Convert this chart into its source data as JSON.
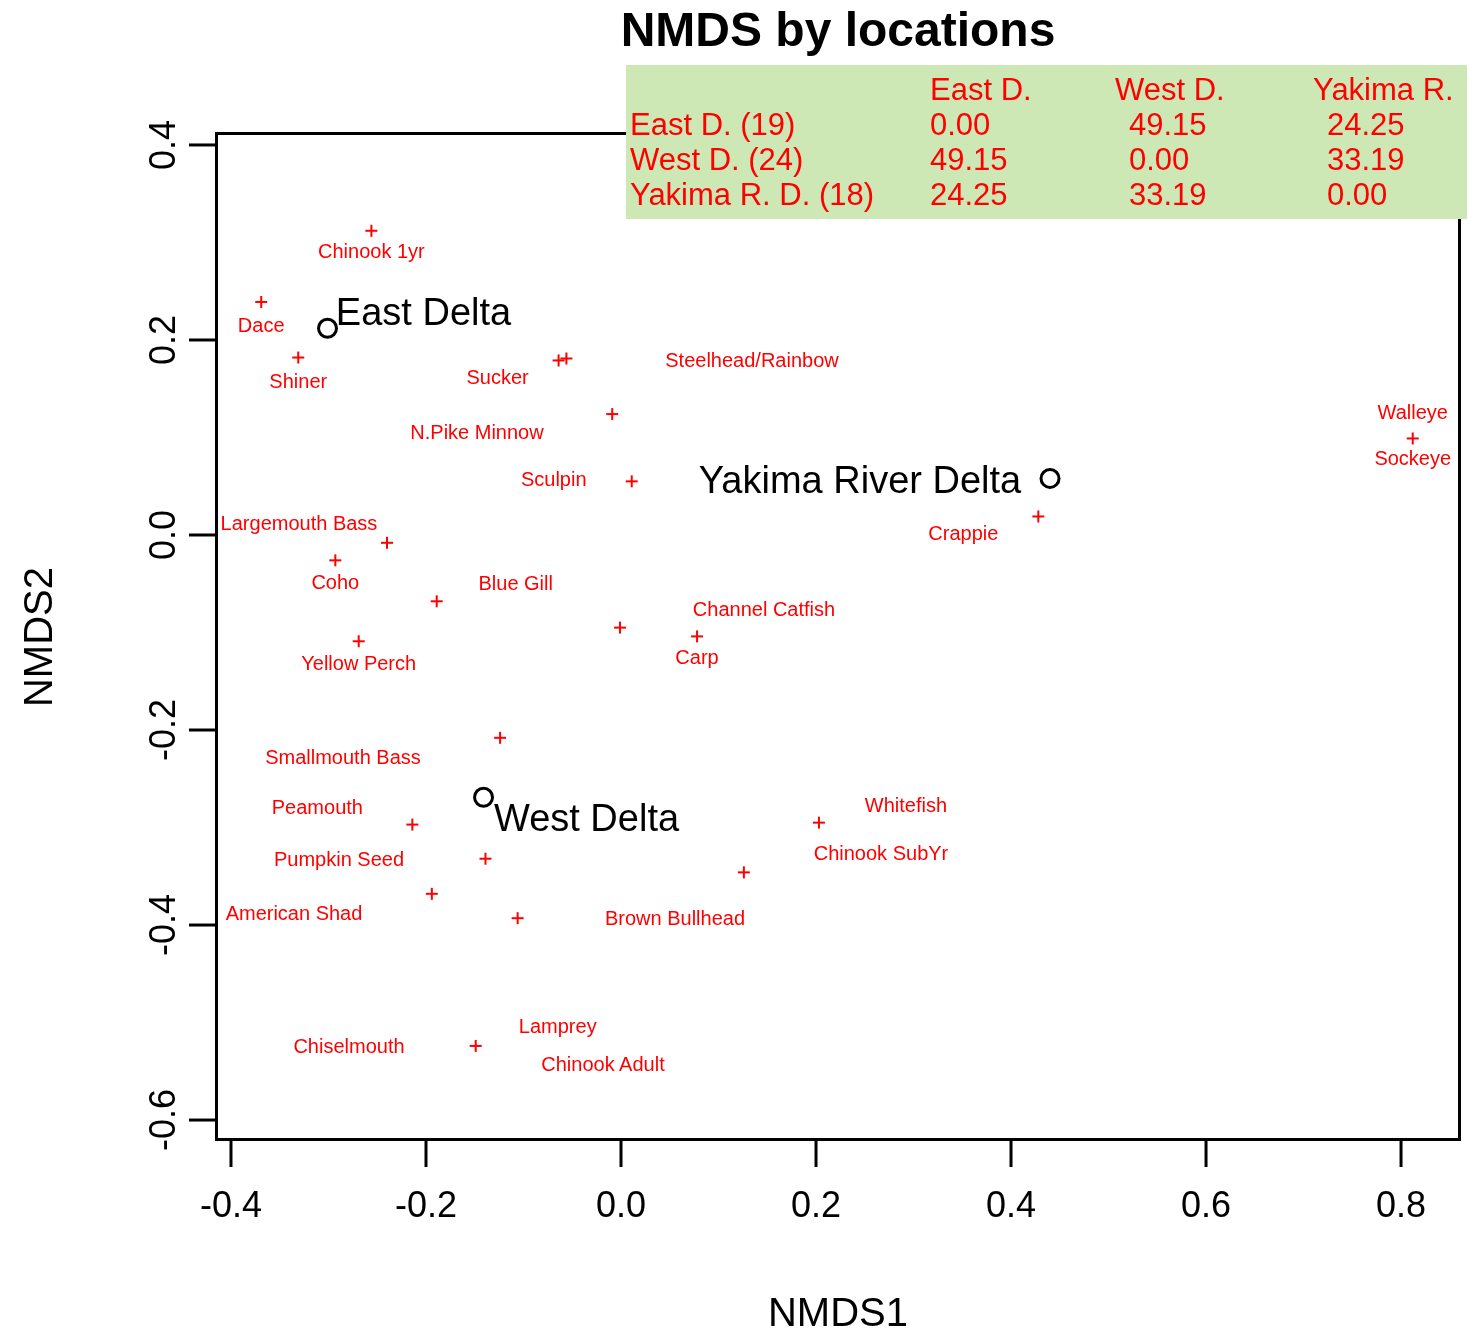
{
  "chart_data": [
    {
      "type": "scatter",
      "title": "NMDS by locations",
      "xlabel": "NMDS1",
      "ylabel": "NMDS2",
      "xlim": [
        -0.4164,
        0.8615
      ],
      "ylim": [
        -0.6215,
        0.4133
      ],
      "xticks": [
        -0.4,
        -0.2,
        {
          "value": 0,
          "label": "0.0"
        },
        0.2,
        0.4,
        0.6,
        0.8
      ],
      "yticks": [
        -0.6,
        -0.4,
        -0.2,
        {
          "value": 0,
          "label": "0.0"
        },
        0.2,
        0.4
      ],
      "series": [
        {
          "color": "#ff0000",
          "marker": "cross",
          "x": [
            -0.256,
            -0.369,
            -0.331,
            -0.064,
            -0.056,
            -0.009,
            0.011,
            0.812,
            0.428,
            -0.24,
            -0.293,
            -0.189,
            -0.001,
            0.078,
            -0.269,
            -0.124,
            -0.214,
            -0.139,
            -0.194,
            -0.106,
            0.203,
            0.126,
            -0.149
          ],
          "values": [
            0.312,
            0.239,
            0.182,
            0.179,
            0.181,
            0.124,
            0.055,
            0.099,
            0.019,
            -0.008,
            -0.026,
            -0.068,
            -0.095,
            -0.104,
            -0.109,
            -0.208,
            -0.297,
            -0.332,
            -0.368,
            -0.393,
            -0.295,
            -0.346,
            -0.524
          ]
        },
        {
          "color": "#000000",
          "marker": "circle",
          "x": [
            -0.301,
            0.44,
            -0.141
          ],
          "values": [
            0.212,
            0.058,
            -0.269
          ]
        }
      ],
      "annotations": [
        {
          "text": "Chinook 1yr",
          "x": -0.256,
          "y": 0.312
        },
        {
          "text": "Dace",
          "x": -0.369,
          "y": 0.239
        },
        {
          "text": "Shiner",
          "x": -0.331,
          "y": 0.182
        },
        {
          "text": "Sucker",
          "x": -0.064,
          "y": 0.179
        },
        "Steelhead/Rainbow",
        "N.Pike Minnow",
        {
          "text": "Sculpin",
          "x": 0.011,
          "y": 0.055
        },
        {
          "text": "Walleye",
          "x": 0.812,
          "y": 0.099
        },
        {
          "text": "Sockeye",
          "x": 0.812,
          "y": 0.099
        },
        {
          "text": "Crappie",
          "x": 0.428,
          "y": 0.019
        },
        {
          "text": "Largemouth Bass",
          "x": -0.24,
          "y": -0.008
        },
        {
          "text": "Coho",
          "x": -0.293,
          "y": -0.026
        },
        {
          "text": "Blue Gill",
          "x": -0.189,
          "y": -0.068
        },
        "Channel Catfish",
        {
          "text": "Carp",
          "x": 0.078,
          "y": -0.104
        },
        {
          "text": "Yellow Perch",
          "x": -0.269,
          "y": -0.109
        },
        "Smallmouth Bass",
        {
          "text": "Peamouth",
          "x": -0.214,
          "y": -0.297
        },
        "Pumpkin Seed",
        "American Shad",
        "Brown Bullhead",
        {
          "text": "Whitefish",
          "x": 0.203,
          "y": -0.295
        },
        "Chinook SubYr",
        {
          "text": "Lamprey",
          "x": -0.149,
          "y": -0.524
        },
        "Chiselmouth",
        "Chinook Adult",
        {
          "text": "East Delta",
          "x": -0.301,
          "y": 0.212
        },
        {
          "text": "Yakima River Delta",
          "x": 0.44,
          "y": 0.058
        },
        {
          "text": "West Delta",
          "x": -0.141,
          "y": -0.269
        }
      ]
    },
    {
      "type": "heatmap",
      "color": "#cde8b5",
      "data_labels": true,
      "categories": [
        "East D.",
        "West D.",
        "Yakima R."
      ],
      "y_categories": [
        "East D. (19)",
        "West D. (24)",
        "Yakima R. D. (18)"
      ],
      "cells": [
        [
          0,
          49.15,
          24.25
        ],
        [
          49.15,
          0,
          33.19
        ],
        [
          24.25,
          33.19,
          0
        ]
      ],
      "cell_labels": [
        [
          "0.00",
          "49.15",
          "24.25"
        ],
        [
          "49.15",
          "0.00",
          "33.19"
        ],
        [
          "24.25",
          "33.19",
          "0.00"
        ]
      ]
    }
  ]
}
